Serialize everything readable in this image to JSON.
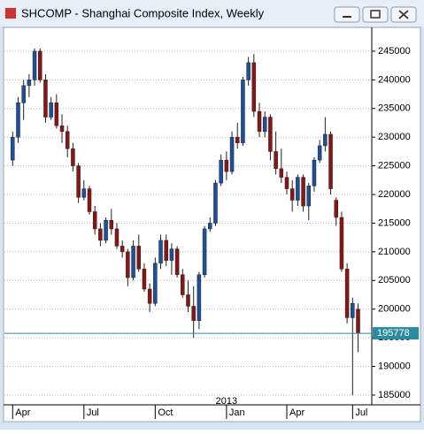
{
  "chart_data": {
    "type": "candlestick",
    "title": "SHCOMP - Shanghai Composite Index, Weekly",
    "up_color": "#1c4f9c",
    "down_color": "#8b1515",
    "grid": true,
    "ylim": [
      183300,
      249000
    ],
    "yticks": [
      185000,
      190000,
      195000,
      200000,
      205000,
      210000,
      215000,
      220000,
      225000,
      230000,
      235000,
      240000,
      245000
    ],
    "xlim": [
      -1.5,
      65.5
    ],
    "xticks": [
      {
        "value": 0,
        "label": "Apr"
      },
      {
        "value": 13,
        "label": "Jul"
      },
      {
        "value": 26,
        "label": "Oct"
      },
      {
        "value": 39,
        "label": "Jan"
      },
      {
        "value": 50,
        "label": "Apr"
      },
      {
        "value": 62,
        "label": "Jul"
      }
    ],
    "annotation": "2013",
    "current_value": 195778,
    "current_color": "#2a8c9c",
    "candles": [
      [
        226000,
        231000,
        225000,
        230000
      ],
      [
        230000,
        237000,
        229000,
        236000
      ],
      [
        236000,
        240000,
        233000,
        239000
      ],
      [
        239000,
        241000,
        237000,
        240000
      ],
      [
        240000,
        245500,
        239000,
        245000
      ],
      [
        245000,
        245500,
        239500,
        240000
      ],
      [
        240000,
        241000,
        232500,
        233500
      ],
      [
        233500,
        237000,
        233000,
        236000
      ],
      [
        236000,
        237500,
        231500,
        232000
      ],
      [
        232000,
        234000,
        229000,
        231000
      ],
      [
        231000,
        232000,
        226500,
        228000
      ],
      [
        228000,
        229000,
        224000,
        225000
      ],
      [
        225000,
        225500,
        218500,
        219500
      ],
      [
        219500,
        222500,
        219000,
        221000
      ],
      [
        221000,
        221500,
        216500,
        217000
      ],
      [
        217000,
        218000,
        213000,
        214000
      ],
      [
        214000,
        215000,
        211000,
        212000
      ],
      [
        212000,
        216000,
        211500,
        215500
      ],
      [
        215500,
        217500,
        213000,
        214000
      ],
      [
        214000,
        215000,
        210500,
        211000
      ],
      [
        211000,
        212000,
        209000,
        210000
      ],
      [
        210000,
        210500,
        204000,
        205500
      ],
      [
        205500,
        212000,
        205000,
        211000
      ],
      [
        211000,
        213000,
        206500,
        207000
      ],
      [
        207000,
        208000,
        203000,
        203500
      ],
      [
        203500,
        204500,
        199500,
        201000
      ],
      [
        201000,
        209000,
        200500,
        208000
      ],
      [
        208000,
        213000,
        207000,
        212000
      ],
      [
        212000,
        213000,
        207500,
        208500
      ],
      [
        208500,
        211500,
        206000,
        210500
      ],
      [
        210500,
        211000,
        205500,
        206000
      ],
      [
        206000,
        207000,
        202000,
        202500
      ],
      [
        202500,
        205000,
        199500,
        200500
      ],
      [
        200500,
        204000,
        195000,
        198000
      ],
      [
        198000,
        206500,
        196500,
        206000
      ],
      [
        206000,
        214500,
        205500,
        214000
      ],
      [
        214000,
        216000,
        213500,
        215000
      ],
      [
        215000,
        222500,
        214500,
        222000
      ],
      [
        222000,
        227000,
        221500,
        226000
      ],
      [
        226000,
        227500,
        222500,
        224000
      ],
      [
        224000,
        231000,
        223500,
        230000
      ],
      [
        230000,
        232500,
        228000,
        229000
      ],
      [
        229000,
        240500,
        228500,
        240000
      ],
      [
        240000,
        244000,
        239000,
        243000
      ],
      [
        243000,
        244500,
        233500,
        234500
      ],
      [
        234500,
        236000,
        230000,
        231000
      ],
      [
        231000,
        234500,
        230000,
        233500
      ],
      [
        233500,
        234000,
        226000,
        227500
      ],
      [
        227500,
        231000,
        223500,
        224500
      ],
      [
        224500,
        228000,
        222000,
        223000
      ],
      [
        223000,
        224000,
        220000,
        221000
      ],
      [
        221000,
        222500,
        217000,
        219000
      ],
      [
        219000,
        223500,
        218000,
        223000
      ],
      [
        223000,
        223500,
        217000,
        218000
      ],
      [
        218000,
        222000,
        215500,
        221500
      ],
      [
        221500,
        226500,
        220500,
        226000
      ],
      [
        226000,
        229500,
        225500,
        228500
      ],
      [
        228500,
        233500,
        227500,
        230500
      ],
      [
        230500,
        231000,
        220000,
        221000
      ],
      [
        219000,
        219500,
        214500,
        216000
      ],
      [
        216000,
        217000,
        206500,
        207000
      ],
      [
        207000,
        208000,
        197500,
        198500
      ],
      [
        198500,
        202000,
        185000,
        201000
      ],
      [
        200000,
        201000,
        192500,
        195778
      ]
    ]
  }
}
